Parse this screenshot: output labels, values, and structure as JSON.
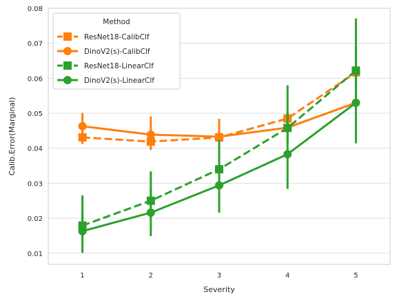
{
  "chart_data": {
    "type": "line",
    "xlabel": "Severity",
    "ylabel": "Calib.Error(Marginal)",
    "categories": [
      "1",
      "2",
      "3",
      "4",
      "5"
    ],
    "ylim": [
      0.0068,
      0.08
    ],
    "yticks": [
      0.01,
      0.02,
      0.03,
      0.04,
      0.05,
      0.06,
      0.07,
      0.08
    ],
    "ytick_labels": [
      "0.01",
      "0.02",
      "0.03",
      "0.04",
      "0.05",
      "0.06",
      "0.07",
      "0.08"
    ],
    "grid": true,
    "legend": {
      "title": "Method",
      "placement": "top-left"
    },
    "series": [
      {
        "name": "ResNet18-CalibClf",
        "color": "#ff7f0e",
        "line_style": "dashed",
        "marker": "square",
        "values": [
          0.0431,
          0.0419,
          0.0431,
          0.0485,
          0.0617
        ],
        "error_low": [
          0.0412,
          0.0395,
          0.0418,
          0.0469,
          0.0608
        ],
        "error_high": [
          0.0451,
          0.0444,
          0.0446,
          0.0503,
          0.0627
        ]
      },
      {
        "name": "DinoV2(s)-CalibClf",
        "color": "#ff7f0e",
        "line_style": "solid",
        "marker": "circle",
        "values": [
          0.0463,
          0.0439,
          0.0433,
          0.0459,
          0.053
        ],
        "error_low": [
          0.0428,
          0.0403,
          0.0382,
          0.0425,
          0.0522
        ],
        "error_high": [
          0.0501,
          0.0491,
          0.0484,
          0.0496,
          0.0538
        ]
      },
      {
        "name": "ResNet18-LinearClf",
        "color": "#2ca02c",
        "line_style": "dashed",
        "marker": "square",
        "values": [
          0.0179,
          0.025,
          0.034,
          0.0458,
          0.0622
        ],
        "error_low": [
          0.0146,
          0.0215,
          0.0305,
          0.0411,
          0.0555
        ],
        "error_high": [
          0.0216,
          0.0287,
          0.0378,
          0.0505,
          0.0688
        ]
      },
      {
        "name": "DinoV2(s)-LinearClf",
        "color": "#2ca02c",
        "line_style": "solid",
        "marker": "circle",
        "values": [
          0.0163,
          0.0216,
          0.0294,
          0.0383,
          0.053
        ],
        "error_low": [
          0.0101,
          0.0149,
          0.0216,
          0.0284,
          0.0414
        ],
        "error_high": [
          0.0265,
          0.0334,
          0.0423,
          0.058,
          0.0771
        ]
      }
    ]
  }
}
